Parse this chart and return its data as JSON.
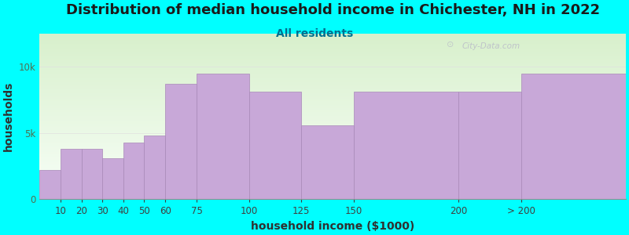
{
  "title": "Distribution of median household income in Chichester, NH in 2022",
  "subtitle": "All residents",
  "xlabel": "household income ($1000)",
  "ylabel": "households",
  "background_color": "#00FFFF",
  "plot_bg_top_color": "#d8f0cc",
  "plot_bg_bottom_color": "#f8fff8",
  "bar_color": "#c8a8d8",
  "bar_edge_color": "#a888b8",
  "watermark": "City-Data.com",
  "bar_lefts": [
    0,
    10,
    20,
    30,
    40,
    50,
    60,
    75,
    100,
    125,
    150,
    200,
    230
  ],
  "bar_widths": [
    10,
    10,
    10,
    10,
    10,
    10,
    15,
    25,
    25,
    25,
    50,
    30,
    50
  ],
  "bar_heights": [
    2200,
    3800,
    3800,
    3100,
    4300,
    4800,
    8700,
    9500,
    8100,
    5600,
    8100,
    8100,
    9500
  ],
  "xtick_positions": [
    10,
    20,
    30,
    40,
    50,
    60,
    75,
    100,
    125,
    150,
    200,
    230
  ],
  "xtick_labels": [
    "10",
    "20",
    "30",
    "40",
    "50",
    "60",
    "75",
    "100",
    "125",
    "150",
    "200",
    "> 200"
  ],
  "yticks": [
    0,
    5000,
    10000
  ],
  "ytick_labels": [
    "0",
    "5k",
    "10k"
  ],
  "xlim": [
    0,
    280
  ],
  "ylim": [
    0,
    12500
  ],
  "title_fontsize": 13,
  "subtitle_fontsize": 10,
  "axis_label_fontsize": 10,
  "tick_fontsize": 8.5
}
